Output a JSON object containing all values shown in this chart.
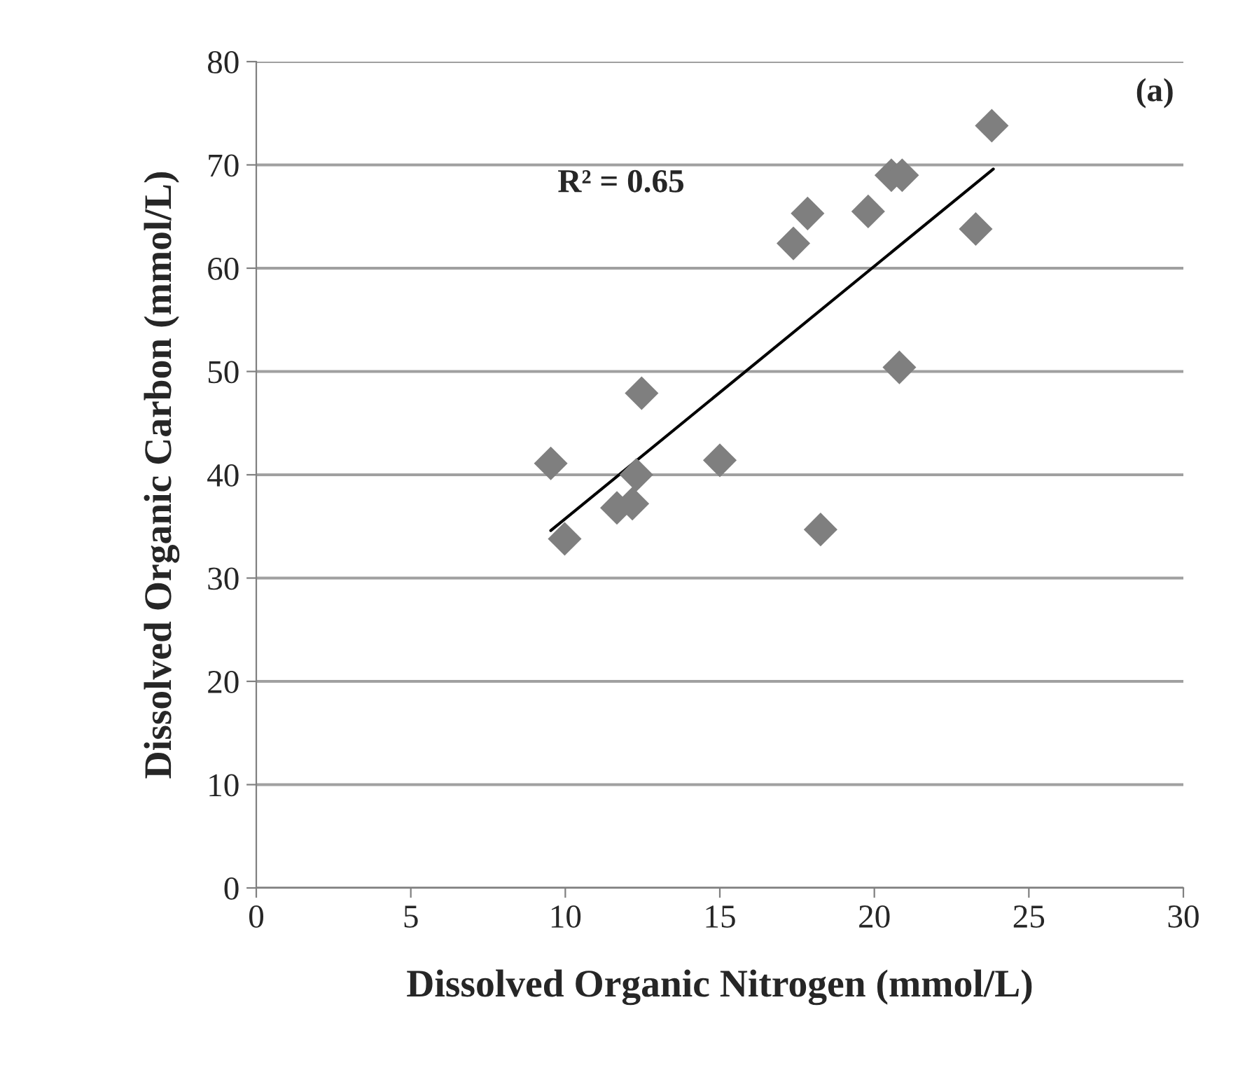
{
  "chart_data": {
    "type": "scatter",
    "xlabel": "Dissolved Organic Nitrogen (mmol/L)",
    "ylabel": "Dissolved Organic Carbon (mmol/L)",
    "annotations": [
      "(a)",
      "R² = 0.65"
    ],
    "series": [
      {
        "color": "#7f7f7f",
        "marker": "diamond",
        "x": [
          9.53,
          12.47,
          12.3,
          15.0,
          11.67,
          12.17,
          9.98,
          23.8,
          20.55,
          20.9,
          17.84,
          19.8,
          17.38,
          23.28,
          20.81,
          18.26
        ],
        "values": [
          41.1,
          47.9,
          40.0,
          41.4,
          36.8,
          37.2,
          33.8,
          73.8,
          69.0,
          69.0,
          65.3,
          65.5,
          62.4,
          63.8,
          50.4,
          34.7
        ]
      },
      {
        "type": "line",
        "color": "#000000",
        "marker": "none",
        "line_style": "solid",
        "x": [
          9.53,
          23.85
        ],
        "values": [
          34.6,
          69.6
        ]
      }
    ],
    "xlim": [
      0,
      30
    ],
    "xticks": [
      0,
      5,
      10,
      15,
      20,
      25,
      30
    ],
    "ylim": [
      0,
      80
    ],
    "yticks": [
      0,
      10,
      20,
      30,
      40,
      50,
      60,
      70,
      80
    ],
    "grid": "y",
    "legend": false
  }
}
